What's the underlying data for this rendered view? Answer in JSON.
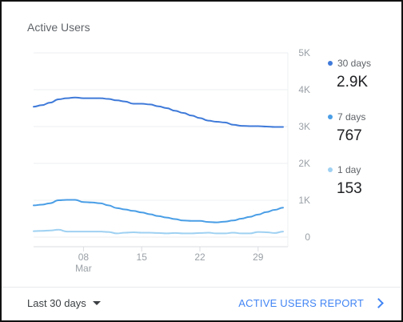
{
  "card": {
    "title": "Active Users"
  },
  "chart_data": {
    "type": "line",
    "title": "Active Users",
    "xlabel": "",
    "ylabel": "",
    "x_range": [
      0,
      30
    ],
    "ylim": [
      0,
      5000
    ],
    "yticks": [
      0,
      1000,
      2000,
      3000,
      4000,
      5000
    ],
    "ytick_labels": [
      "0",
      "1K",
      "2K",
      "3K",
      "4K",
      "5K"
    ],
    "xticks": [
      6,
      13,
      20,
      27
    ],
    "xtick_labels": [
      "08",
      "15",
      "22",
      "29"
    ],
    "xtick_sublabel": "Mar",
    "grid": "horizontal",
    "legend_position": "right",
    "series": [
      {
        "name": "30 days",
        "color": "#3f7ad9",
        "values": [
          3540,
          3580,
          3650,
          3740,
          3770,
          3790,
          3770,
          3770,
          3770,
          3750,
          3710,
          3680,
          3620,
          3620,
          3600,
          3550,
          3500,
          3430,
          3370,
          3300,
          3230,
          3160,
          3130,
          3110,
          3050,
          3020,
          3010,
          3010,
          3000,
          2990,
          2990
        ]
      },
      {
        "name": "7 days",
        "color": "#4a9ee6",
        "values": [
          860,
          880,
          920,
          1000,
          1010,
          1010,
          950,
          940,
          920,
          860,
          790,
          750,
          710,
          670,
          620,
          570,
          530,
          490,
          450,
          440,
          440,
          410,
          400,
          420,
          450,
          500,
          550,
          610,
          680,
          740,
          800
        ]
      },
      {
        "name": "1 day",
        "color": "#9fd1f2",
        "values": [
          160,
          170,
          180,
          200,
          150,
          150,
          150,
          150,
          150,
          140,
          100,
          120,
          130,
          120,
          120,
          110,
          100,
          110,
          100,
          100,
          110,
          120,
          100,
          100,
          120,
          100,
          100,
          140,
          130,
          110,
          150
        ]
      }
    ]
  },
  "legend": [
    {
      "label": "30 days",
      "value": "2.9K",
      "color": "#3f7ad9"
    },
    {
      "label": "7 days",
      "value": "767",
      "color": "#4a9ee6"
    },
    {
      "label": "1 day",
      "value": "153",
      "color": "#9fd1f2"
    }
  ],
  "footer": {
    "range_label": "Last 30 days",
    "report_label": "ACTIVE USERS REPORT"
  }
}
